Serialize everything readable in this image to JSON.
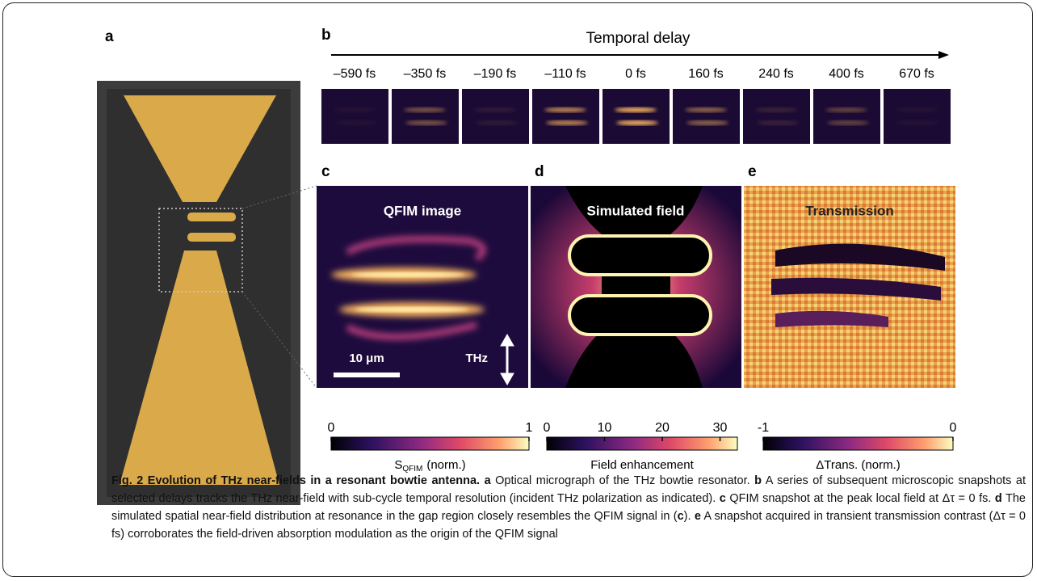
{
  "panels": {
    "a": {
      "label": "a"
    },
    "b": {
      "label": "b",
      "axis_title": "Temporal delay",
      "delays": [
        "–590 fs",
        "–350 fs",
        "–190 fs",
        "–110 fs",
        "0 fs",
        "160 fs",
        "240 fs",
        "400 fs",
        "670 fs"
      ]
    },
    "c": {
      "label": "c",
      "title": "QFIM image",
      "scale_bar": "10 μm",
      "polarization": "THz",
      "colorbar": {
        "range": [
          0,
          1
        ],
        "ticks": [
          0,
          1
        ],
        "label": "S",
        "label_sub": "QFIM",
        "label_unit": "(norm.)"
      }
    },
    "d": {
      "label": "d",
      "title": "Simulated field",
      "colorbar": {
        "range": [
          0,
          33
        ],
        "ticks": [
          0,
          10,
          20,
          30
        ],
        "label": "Field enhancement"
      }
    },
    "e": {
      "label": "e",
      "title": "Transmission",
      "colorbar": {
        "range": [
          -1,
          0
        ],
        "ticks": [
          -1,
          0
        ],
        "label": "ΔTrans. (norm.)"
      }
    }
  },
  "caption": [
    {
      "text": "Fig. 2 Evolution of THz near-fields in a resonant bowtie antenna.",
      "bold": true
    },
    {
      "text": " a",
      "bold": true
    },
    {
      "text": " Optical micrograph of the THz bowtie resonator. ",
      "bold": false
    },
    {
      "text": "b",
      "bold": true
    },
    {
      "text": " A series of subsequent microscopic snapshots at selected delays tracks the THz near-field with sub-cycle temporal resolution (incident THz polarization as indicated). ",
      "bold": false
    },
    {
      "text": "c",
      "bold": true
    },
    {
      "text": " QFIM snapshot at the peak local field at Δτ = 0 fs. ",
      "bold": false
    },
    {
      "text": "d",
      "bold": true
    },
    {
      "text": " The simulated spatial near-field distribution at resonance in the gap region closely resembles the QFIM signal in (",
      "bold": false
    },
    {
      "text": "c",
      "bold": true
    },
    {
      "text": "). ",
      "bold": false
    },
    {
      "text": "e",
      "bold": true
    },
    {
      "text": " A snapshot acquired in transient transmission contrast (Δτ = 0 fs) corroborates the field-driven absorption modulation as the origin of the QFIM signal",
      "bold": false
    }
  ]
}
